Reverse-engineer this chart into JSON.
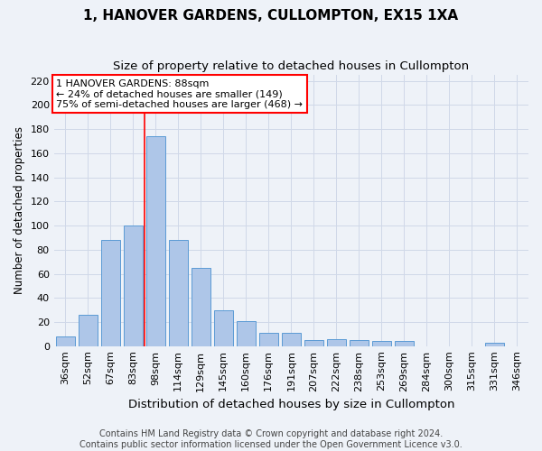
{
  "title": "1, HANOVER GARDENS, CULLOMPTON, EX15 1XA",
  "subtitle": "Size of property relative to detached houses in Cullompton",
  "xlabel": "Distribution of detached houses by size in Cullompton",
  "ylabel": "Number of detached properties",
  "categories": [
    "36sqm",
    "52sqm",
    "67sqm",
    "83sqm",
    "98sqm",
    "114sqm",
    "129sqm",
    "145sqm",
    "160sqm",
    "176sqm",
    "191sqm",
    "207sqm",
    "222sqm",
    "238sqm",
    "253sqm",
    "269sqm",
    "284sqm",
    "300sqm",
    "315sqm",
    "331sqm",
    "346sqm"
  ],
  "values": [
    8,
    26,
    88,
    100,
    174,
    88,
    65,
    30,
    21,
    11,
    11,
    5,
    6,
    5,
    4,
    4,
    0,
    0,
    0,
    3,
    0
  ],
  "bar_color": "#aec6e8",
  "bar_edge_color": "#5b9bd5",
  "grid_color": "#d0d8e8",
  "background_color": "#eef2f8",
  "annotation_line1": "1 HANOVER GARDENS: 88sqm",
  "annotation_line2": "← 24% of detached houses are smaller (149)",
  "annotation_line3": "75% of semi-detached houses are larger (468) →",
  "vline_x_index": 3.5,
  "ylim": [
    0,
    225
  ],
  "yticks": [
    0,
    20,
    40,
    60,
    80,
    100,
    120,
    140,
    160,
    180,
    200,
    220
  ],
  "footer_line1": "Contains HM Land Registry data © Crown copyright and database right 2024.",
  "footer_line2": "Contains public sector information licensed under the Open Government Licence v3.0.",
  "title_fontsize": 11,
  "subtitle_fontsize": 9.5,
  "xlabel_fontsize": 9.5,
  "ylabel_fontsize": 8.5,
  "tick_fontsize": 8,
  "annotation_fontsize": 8,
  "footer_fontsize": 7
}
